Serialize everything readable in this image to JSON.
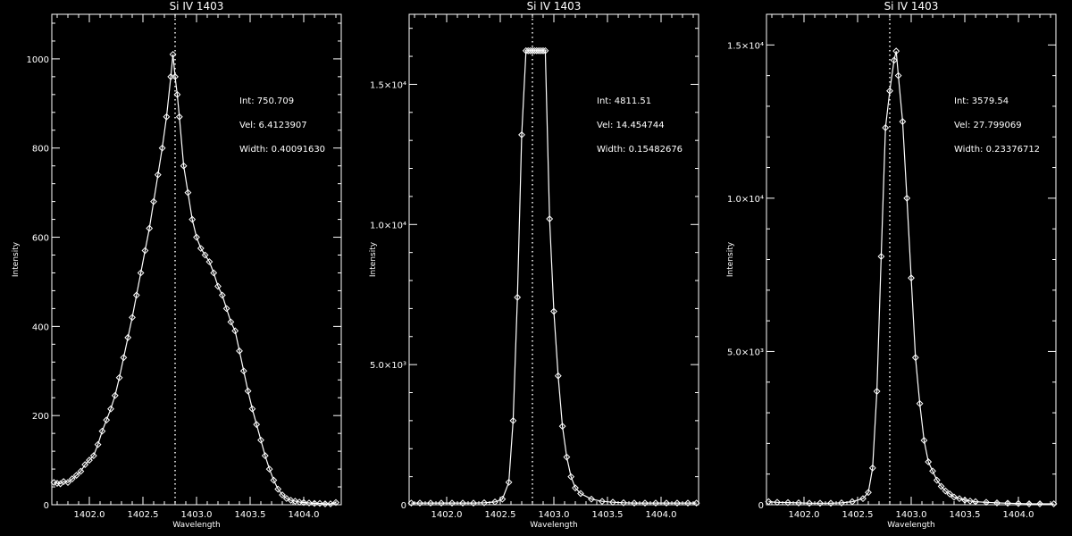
{
  "chart_data": [
    {
      "type": "line",
      "title": "Si IV 1403",
      "xlabel": "Wavelength",
      "ylabel": "Intensity",
      "xlim": [
        1401.65,
        1404.35
      ],
      "ylim": [
        0,
        1100
      ],
      "reference_line_x": 1402.8,
      "marker": "diamond",
      "x_ticks": [
        1402.0,
        1402.5,
        1403.0,
        1403.5,
        1404.0
      ],
      "x_tick_labels": [
        "1402.0",
        "1402.5",
        "1403.0",
        "1403.5",
        "1404.0"
      ],
      "y_ticks": [
        0,
        200,
        400,
        600,
        800,
        1000
      ],
      "y_tick_labels": [
        "0",
        "200",
        "400",
        "600",
        "800",
        "1000"
      ],
      "annotations": [
        "Int: 750.709",
        "Vel: 6.4123907",
        "Width: 0.40091630"
      ],
      "series": [
        {
          "x": [
            1401.67,
            1401.7,
            1401.73,
            1401.76,
            1401.8,
            1401.84,
            1401.88,
            1401.92,
            1401.96,
            1402.0,
            1402.04,
            1402.08,
            1402.12,
            1402.16,
            1402.2,
            1402.24,
            1402.28,
            1402.32,
            1402.36,
            1402.4,
            1402.44,
            1402.48,
            1402.52,
            1402.56,
            1402.6,
            1402.64,
            1402.68,
            1402.72,
            1402.76,
            1402.78,
            1402.8,
            1402.82,
            1402.84,
            1402.88,
            1402.92,
            1402.96,
            1403.0,
            1403.04,
            1403.08,
            1403.12,
            1403.16,
            1403.2,
            1403.24,
            1403.28,
            1403.32,
            1403.36,
            1403.4,
            1403.44,
            1403.48,
            1403.52,
            1403.56,
            1403.6,
            1403.64,
            1403.68,
            1403.72,
            1403.76,
            1403.8,
            1403.84,
            1403.88,
            1403.92,
            1403.96,
            1404.0,
            1404.05,
            1404.1,
            1404.15,
            1404.2,
            1404.25,
            1404.3
          ],
          "values": [
            50,
            48,
            47,
            52,
            50,
            58,
            66,
            75,
            90,
            100,
            110,
            135,
            165,
            190,
            215,
            245,
            285,
            330,
            375,
            420,
            470,
            520,
            570,
            620,
            680,
            740,
            800,
            870,
            960,
            1010,
            960,
            920,
            870,
            760,
            700,
            640,
            600,
            575,
            560,
            545,
            520,
            490,
            470,
            440,
            410,
            390,
            345,
            300,
            255,
            215,
            180,
            145,
            110,
            80,
            55,
            35,
            22,
            14,
            10,
            8,
            6,
            5,
            4,
            3,
            3,
            2,
            2,
            5
          ]
        }
      ]
    },
    {
      "type": "line",
      "title": "Si IV 1403",
      "xlabel": "Wavelength",
      "ylabel": "Intensity",
      "xlim": [
        1401.65,
        1404.35
      ],
      "ylim": [
        0,
        17500
      ],
      "reference_line_x": 1402.8,
      "marker": "diamond",
      "x_ticks": [
        1402.0,
        1402.5,
        1403.0,
        1403.5,
        1404.0
      ],
      "x_tick_labels": [
        "1402.0",
        "1402.5",
        "1403.0",
        "1403.5",
        "1404.0"
      ],
      "y_ticks": [
        0,
        5000,
        10000,
        15000
      ],
      "y_tick_labels": [
        "0",
        "5.0×10³",
        "1.0×10⁴",
        "1.5×10⁴"
      ],
      "annotations": [
        "Int: 4811.51",
        "Vel: 14.454744",
        "Width: 0.15482676"
      ],
      "series": [
        {
          "x": [
            1401.67,
            1401.75,
            1401.85,
            1401.95,
            1402.05,
            1402.15,
            1402.25,
            1402.35,
            1402.45,
            1402.52,
            1402.58,
            1402.62,
            1402.66,
            1402.7,
            1402.74,
            1402.76,
            1402.78,
            1402.8,
            1402.82,
            1402.84,
            1402.86,
            1402.88,
            1402.9,
            1402.92,
            1402.96,
            1403.0,
            1403.04,
            1403.08,
            1403.12,
            1403.16,
            1403.2,
            1403.25,
            1403.35,
            1403.45,
            1403.55,
            1403.65,
            1403.75,
            1403.85,
            1403.95,
            1404.05,
            1404.15,
            1404.25,
            1404.33
          ],
          "values": [
            60,
            60,
            60,
            60,
            60,
            60,
            60,
            70,
            100,
            200,
            800,
            3000,
            7400,
            13200,
            16200,
            16200,
            16200,
            16200,
            16200,
            16200,
            16200,
            16200,
            16200,
            16200,
            10200,
            6900,
            4600,
            2800,
            1700,
            1000,
            600,
            400,
            200,
            120,
            90,
            70,
            60,
            60,
            60,
            60,
            60,
            60,
            60
          ]
        }
      ]
    },
    {
      "type": "line",
      "title": "Si IV 1403",
      "xlabel": "Wavelength",
      "ylabel": "Intensity",
      "xlim": [
        1401.65,
        1404.35
      ],
      "ylim": [
        0,
        16000
      ],
      "reference_line_x": 1402.8,
      "marker": "diamond",
      "x_ticks": [
        1402.0,
        1402.5,
        1403.0,
        1403.5,
        1404.0
      ],
      "x_tick_labels": [
        "1402.0",
        "1402.5",
        "1403.0",
        "1403.5",
        "1404.0"
      ],
      "y_ticks": [
        0,
        5000,
        10000,
        15000
      ],
      "y_tick_labels": [
        "0",
        "5.0×10³",
        "1.0×10⁴",
        "1.5×10⁴"
      ],
      "annotations": [
        "Int: 3579.54",
        "Vel: 27.799069",
        "Width: 0.23376712"
      ],
      "series": [
        {
          "x": [
            1401.67,
            1401.75,
            1401.85,
            1401.95,
            1402.05,
            1402.15,
            1402.25,
            1402.35,
            1402.45,
            1402.55,
            1402.6,
            1402.64,
            1402.68,
            1402.72,
            1402.76,
            1402.8,
            1402.84,
            1402.86,
            1402.88,
            1402.92,
            1402.96,
            1403.0,
            1403.04,
            1403.08,
            1403.12,
            1403.16,
            1403.2,
            1403.24,
            1403.28,
            1403.32,
            1403.36,
            1403.4,
            1403.45,
            1403.5,
            1403.55,
            1403.6,
            1403.7,
            1403.8,
            1403.9,
            1404.0,
            1404.1,
            1404.2,
            1404.33
          ],
          "values": [
            100,
            80,
            70,
            60,
            50,
            50,
            50,
            60,
            100,
            200,
            400,
            1200,
            3700,
            8100,
            12300,
            13500,
            14500,
            14800,
            14000,
            12500,
            10000,
            7400,
            4800,
            3300,
            2100,
            1400,
            1100,
            800,
            600,
            450,
            350,
            250,
            200,
            150,
            120,
            100,
            80,
            60,
            50,
            40,
            30,
            30,
            30
          ]
        }
      ]
    }
  ]
}
